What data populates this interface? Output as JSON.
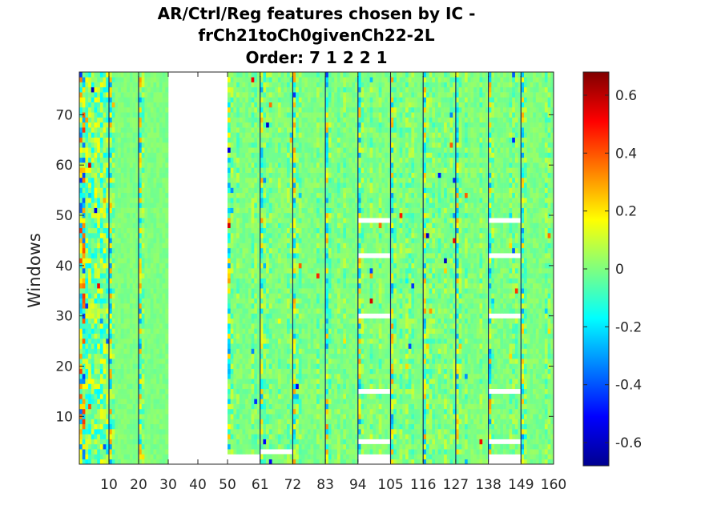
{
  "chart_data": {
    "type": "heatmap",
    "title_lines": [
      "AR/Ctrl/Reg features chosen by IC -",
      "frCh21toCh0givenCh22-2L",
      "Order: 7 1 2 2 1"
    ],
    "xlabel": "",
    "ylabel": "Windows",
    "xlim": [
      0,
      160
    ],
    "ylim": [
      1,
      78
    ],
    "x_ticks": [
      10,
      20,
      30,
      40,
      50,
      61,
      72,
      83,
      94,
      105,
      116,
      127,
      138,
      149,
      160
    ],
    "y_ticks": [
      10,
      20,
      30,
      40,
      50,
      60,
      70
    ],
    "colormap": "jet",
    "clim": [
      -0.68,
      0.68
    ],
    "colorbar_ticks": [
      0.6,
      0.4,
      0.2,
      0,
      -0.2,
      -0.4,
      -0.6
    ],
    "colorbar_tick_labels": [
      "0.6",
      "0.4",
      "0.2",
      "0",
      "-0.2",
      "-0.4",
      "-0.6"
    ],
    "blank_feature_ranges": [
      [
        30,
        50
      ]
    ],
    "blank_window_rows": [
      {
        "x_range": [
          50,
          61
        ],
        "windows": [
          1,
          2
        ]
      },
      {
        "x_range": [
          61,
          72
        ],
        "windows": [
          3
        ]
      },
      {
        "x_range": [
          94,
          105
        ],
        "windows": [
          1,
          2,
          5,
          15,
          30,
          42,
          49
        ]
      },
      {
        "x_range": [
          138,
          149
        ],
        "windows": [
          1,
          2,
          5,
          15,
          30,
          42,
          49
        ]
      }
    ],
    "block_boundaries": [
      10,
      20,
      30,
      40,
      50,
      61,
      72,
      83,
      94,
      105,
      116,
      127,
      138,
      149
    ]
  }
}
